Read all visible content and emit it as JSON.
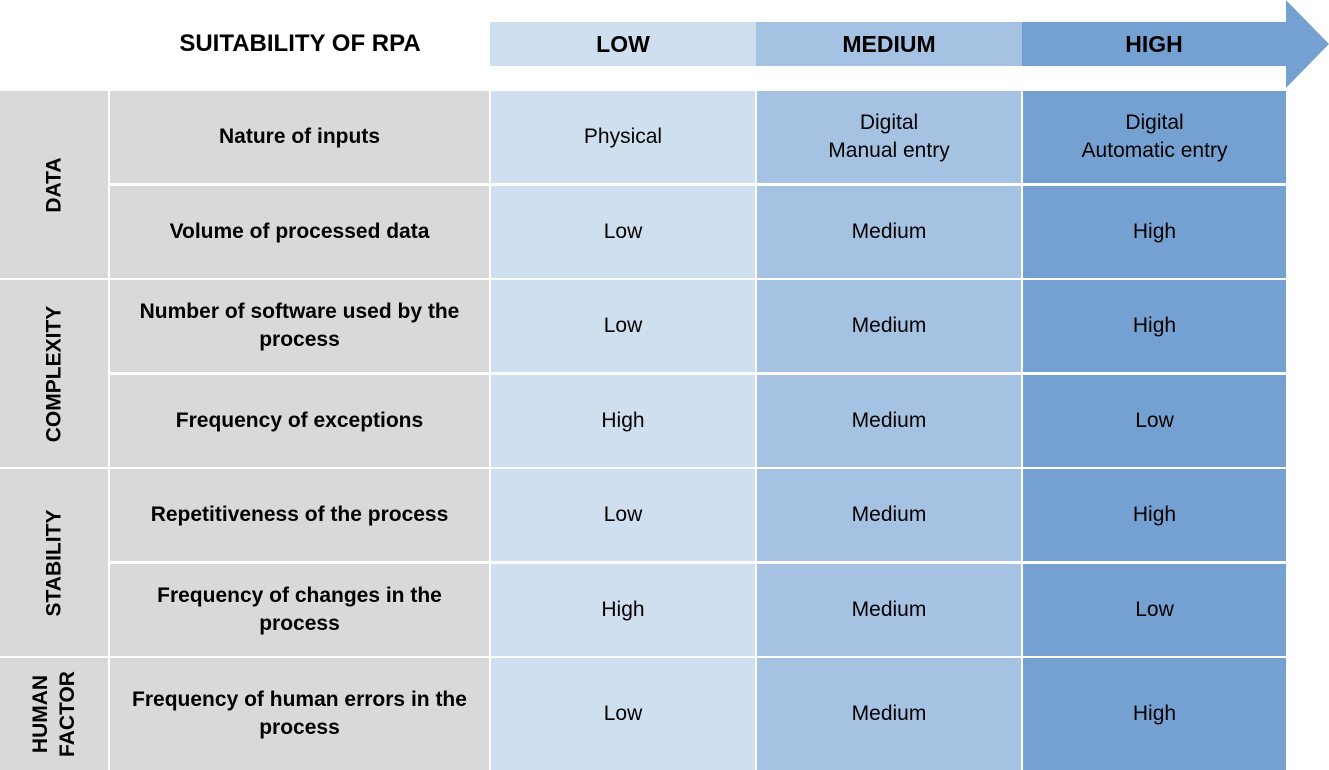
{
  "header": {
    "title": "SUITABILITY OF RPA",
    "levels": [
      "LOW",
      "MEDIUM",
      "HIGH"
    ]
  },
  "colors": {
    "grey": "#d9d9d9",
    "low": "#d0dff0",
    "medium": "#a5c2e2",
    "high": "#75a1d2"
  },
  "categories": [
    {
      "label": "DATA"
    },
    {
      "label": "COMPLEXITY"
    },
    {
      "label": "STABILITY"
    },
    {
      "label": "HUMAN\nFACTOR"
    }
  ],
  "rows": [
    {
      "criterion": "Nature of inputs",
      "low": "Physical",
      "medium": "Digital\nManual entry",
      "high": "Digital\nAutomatic entry"
    },
    {
      "criterion": "Volume of processed data",
      "low": "Low",
      "medium": "Medium",
      "high": "High"
    },
    {
      "criterion": "Number of software used by the process",
      "low": "Low",
      "medium": "Medium",
      "high": "High"
    },
    {
      "criterion": "Frequency of exceptions",
      "low": "High",
      "medium": "Medium",
      "high": "Low"
    },
    {
      "criterion": "Repetitiveness of the process",
      "low": "Low",
      "medium": "Medium",
      "high": "High"
    },
    {
      "criterion": "Frequency of changes in the process",
      "low": "High",
      "medium": "Medium",
      "high": "Low"
    },
    {
      "criterion": "Frequency of human errors in the process",
      "low": "Low",
      "medium": "Medium",
      "high": "High"
    }
  ]
}
